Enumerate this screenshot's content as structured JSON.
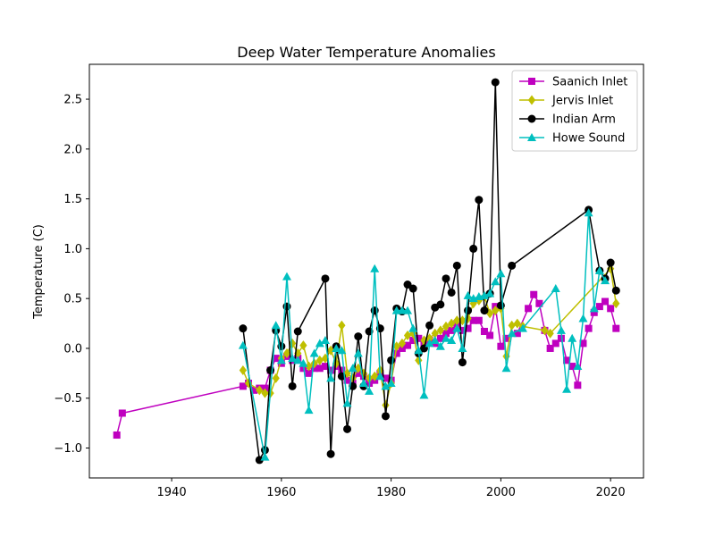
{
  "chart_data": {
    "type": "line",
    "title": "Deep Water Temperature Anomalies",
    "xlabel": "",
    "ylabel": "Temperature (C)",
    "xlim": [
      1925,
      2026
    ],
    "ylim": [
      -1.3,
      2.85
    ],
    "xticks": [
      1940,
      1960,
      1980,
      2000,
      2020
    ],
    "yticks": [
      -1.0,
      -0.5,
      0.0,
      0.5,
      1.0,
      1.5,
      2.0,
      2.5
    ],
    "ytick_labels": [
      "−1.0",
      "−0.5",
      "0.0",
      "0.5",
      "1.0",
      "1.5",
      "2.0",
      "2.5"
    ],
    "grid": false,
    "legend_position": "top-right",
    "series": [
      {
        "name": "Saanich Inlet",
        "color": "#bf00bf",
        "marker": "square",
        "points": [
          [
            1930,
            -0.87
          ],
          [
            1931,
            -0.65
          ],
          [
            1953,
            -0.38
          ],
          [
            1954,
            -0.35
          ],
          [
            1955,
            -0.42
          ],
          [
            1956,
            -0.4
          ],
          [
            1957,
            -0.4
          ],
          [
            1958,
            -0.22
          ],
          [
            1959,
            -0.1
          ],
          [
            1960,
            -0.15
          ],
          [
            1961,
            -0.08
          ],
          [
            1962,
            -0.12
          ],
          [
            1963,
            -0.1
          ],
          [
            1964,
            -0.2
          ],
          [
            1965,
            -0.25
          ],
          [
            1966,
            -0.2
          ],
          [
            1967,
            -0.2
          ],
          [
            1968,
            -0.18
          ],
          [
            1969,
            -0.22
          ],
          [
            1970,
            -0.18
          ],
          [
            1971,
            -0.22
          ],
          [
            1972,
            -0.32
          ],
          [
            1973,
            -0.35
          ],
          [
            1974,
            -0.25
          ],
          [
            1975,
            -0.28
          ],
          [
            1976,
            -0.35
          ],
          [
            1977,
            -0.32
          ],
          [
            1978,
            -0.25
          ],
          [
            1979,
            -0.3
          ],
          [
            1980,
            -0.32
          ],
          [
            1981,
            -0.05
          ],
          [
            1982,
            0.0
          ],
          [
            1983,
            0.03
          ],
          [
            1984,
            0.08
          ],
          [
            1985,
            0.1
          ],
          [
            1986,
            0.05
          ],
          [
            1987,
            0.08
          ],
          [
            1988,
            0.05
          ],
          [
            1989,
            0.1
          ],
          [
            1990,
            0.15
          ],
          [
            1991,
            0.18
          ],
          [
            1992,
            0.25
          ],
          [
            1993,
            0.18
          ],
          [
            1994,
            0.2
          ],
          [
            1995,
            0.28
          ],
          [
            1996,
            0.28
          ],
          [
            1997,
            0.17
          ],
          [
            1998,
            0.13
          ],
          [
            1999,
            0.42
          ],
          [
            2000,
            0.02
          ],
          [
            2001,
            0.1
          ],
          [
            2003,
            0.15
          ],
          [
            2005,
            0.4
          ],
          [
            2006,
            0.54
          ],
          [
            2007,
            0.45
          ],
          [
            2008,
            0.18
          ],
          [
            2009,
            0.0
          ],
          [
            2010,
            0.05
          ],
          [
            2011,
            0.1
          ],
          [
            2012,
            -0.12
          ],
          [
            2013,
            -0.18
          ],
          [
            2014,
            -0.37
          ],
          [
            2015,
            0.05
          ],
          [
            2016,
            0.2
          ],
          [
            2017,
            0.36
          ],
          [
            2018,
            0.42
          ],
          [
            2019,
            0.47
          ],
          [
            2020,
            0.4
          ],
          [
            2021,
            0.2
          ]
        ]
      },
      {
        "name": "Jervis Inlet",
        "color": "#bfbf00",
        "marker": "diamond",
        "points": [
          [
            1953,
            -0.22
          ],
          [
            1954,
            -0.35
          ],
          [
            1956,
            -0.42
          ],
          [
            1957,
            -0.45
          ],
          [
            1958,
            -0.45
          ],
          [
            1959,
            -0.3
          ],
          [
            1960,
            -0.1
          ],
          [
            1961,
            -0.05
          ],
          [
            1962,
            0.05
          ],
          [
            1963,
            -0.05
          ],
          [
            1964,
            0.03
          ],
          [
            1965,
            -0.18
          ],
          [
            1966,
            -0.15
          ],
          [
            1967,
            -0.12
          ],
          [
            1968,
            -0.1
          ],
          [
            1969,
            -0.02
          ],
          [
            1970,
            -0.15
          ],
          [
            1971,
            0.23
          ],
          [
            1972,
            -0.25
          ],
          [
            1973,
            -0.3
          ],
          [
            1974,
            -0.2
          ],
          [
            1975,
            -0.25
          ],
          [
            1976,
            -0.3
          ],
          [
            1977,
            -0.28
          ],
          [
            1978,
            -0.22
          ],
          [
            1979,
            -0.57
          ],
          [
            1980,
            -0.35
          ],
          [
            1981,
            0.02
          ],
          [
            1982,
            0.05
          ],
          [
            1983,
            0.13
          ],
          [
            1984,
            0.15
          ],
          [
            1985,
            -0.12
          ],
          [
            1986,
            0.08
          ],
          [
            1987,
            0.1
          ],
          [
            1988,
            0.15
          ],
          [
            1989,
            0.18
          ],
          [
            1990,
            0.22
          ],
          [
            1991,
            0.25
          ],
          [
            1992,
            0.28
          ],
          [
            1993,
            0.28
          ],
          [
            1994,
            0.3
          ],
          [
            1995,
            0.45
          ],
          [
            1996,
            0.48
          ],
          [
            1997,
            0.52
          ],
          [
            1998,
            0.35
          ],
          [
            1999,
            0.38
          ],
          [
            2000,
            0.4
          ],
          [
            2001,
            -0.08
          ],
          [
            2002,
            0.23
          ],
          [
            2003,
            0.25
          ],
          [
            2004,
            0.22
          ],
          [
            2008,
            0.18
          ],
          [
            2009,
            0.15
          ],
          [
            2020,
            0.8
          ],
          [
            2021,
            0.45
          ]
        ]
      },
      {
        "name": "Indian Arm",
        "color": "#000000",
        "marker": "circle",
        "points": [
          [
            1953,
            0.2
          ],
          [
            1956,
            -1.12
          ],
          [
            1957,
            -1.02
          ],
          [
            1958,
            -0.22
          ],
          [
            1959,
            0.18
          ],
          [
            1960,
            0.02
          ],
          [
            1961,
            0.42
          ],
          [
            1962,
            -0.38
          ],
          [
            1963,
            0.17
          ],
          [
            1968,
            0.7
          ],
          [
            1969,
            -1.06
          ],
          [
            1970,
            0.02
          ],
          [
            1971,
            -0.28
          ],
          [
            1972,
            -0.81
          ],
          [
            1973,
            -0.38
          ],
          [
            1974,
            0.12
          ],
          [
            1975,
            -0.38
          ],
          [
            1976,
            0.17
          ],
          [
            1977,
            0.38
          ],
          [
            1978,
            0.2
          ],
          [
            1979,
            -0.68
          ],
          [
            1980,
            -0.12
          ],
          [
            1981,
            0.4
          ],
          [
            1982,
            0.37
          ],
          [
            1983,
            0.64
          ],
          [
            1984,
            0.6
          ],
          [
            1985,
            -0.05
          ],
          [
            1986,
            0.0
          ],
          [
            1987,
            0.23
          ],
          [
            1988,
            0.41
          ],
          [
            1989,
            0.44
          ],
          [
            1990,
            0.7
          ],
          [
            1991,
            0.56
          ],
          [
            1992,
            0.83
          ],
          [
            1993,
            -0.14
          ],
          [
            1994,
            0.38
          ],
          [
            1995,
            1.0
          ],
          [
            1996,
            1.49
          ],
          [
            1997,
            0.38
          ],
          [
            1998,
            0.55
          ],
          [
            1999,
            2.67
          ],
          [
            2000,
            0.43
          ],
          [
            2002,
            0.83
          ],
          [
            2016,
            1.39
          ],
          [
            2018,
            0.78
          ],
          [
            2019,
            0.7
          ],
          [
            2020,
            0.86
          ],
          [
            2021,
            0.58
          ]
        ]
      },
      {
        "name": "Howe Sound",
        "color": "#00bfbf",
        "marker": "triangle",
        "points": [
          [
            1953,
            0.03
          ],
          [
            1957,
            -1.09
          ],
          [
            1959,
            0.23
          ],
          [
            1960,
            -0.12
          ],
          [
            1961,
            0.72
          ],
          [
            1962,
            -0.1
          ],
          [
            1963,
            -0.12
          ],
          [
            1964,
            -0.15
          ],
          [
            1965,
            -0.62
          ],
          [
            1966,
            -0.05
          ],
          [
            1967,
            0.05
          ],
          [
            1968,
            0.08
          ],
          [
            1969,
            -0.3
          ],
          [
            1970,
            0.0
          ],
          [
            1971,
            -0.02
          ],
          [
            1972,
            -0.55
          ],
          [
            1973,
            -0.2
          ],
          [
            1974,
            -0.05
          ],
          [
            1975,
            -0.35
          ],
          [
            1976,
            -0.43
          ],
          [
            1977,
            0.8
          ],
          [
            1978,
            -0.28
          ],
          [
            1979,
            -0.38
          ],
          [
            1980,
            -0.35
          ],
          [
            1981,
            0.38
          ],
          [
            1982,
            0.38
          ],
          [
            1983,
            0.38
          ],
          [
            1984,
            0.2
          ],
          [
            1985,
            -0.02
          ],
          [
            1986,
            -0.47
          ],
          [
            1987,
            0.05
          ],
          [
            1988,
            0.08
          ],
          [
            1989,
            0.02
          ],
          [
            1990,
            0.1
          ],
          [
            1991,
            0.08
          ],
          [
            1992,
            0.2
          ],
          [
            1993,
            0.0
          ],
          [
            1994,
            0.53
          ],
          [
            1995,
            0.5
          ],
          [
            1996,
            0.52
          ],
          [
            1997,
            0.53
          ],
          [
            1998,
            0.55
          ],
          [
            1999,
            0.67
          ],
          [
            2000,
            0.75
          ],
          [
            2001,
            -0.2
          ],
          [
            2002,
            0.15
          ],
          [
            2004,
            0.2
          ],
          [
            2010,
            0.6
          ],
          [
            2011,
            0.18
          ],
          [
            2012,
            -0.41
          ],
          [
            2013,
            0.1
          ],
          [
            2014,
            -0.18
          ],
          [
            2015,
            0.3
          ],
          [
            2016,
            1.36
          ],
          [
            2017,
            0.4
          ],
          [
            2018,
            0.78
          ],
          [
            2019,
            0.68
          ]
        ]
      }
    ]
  }
}
